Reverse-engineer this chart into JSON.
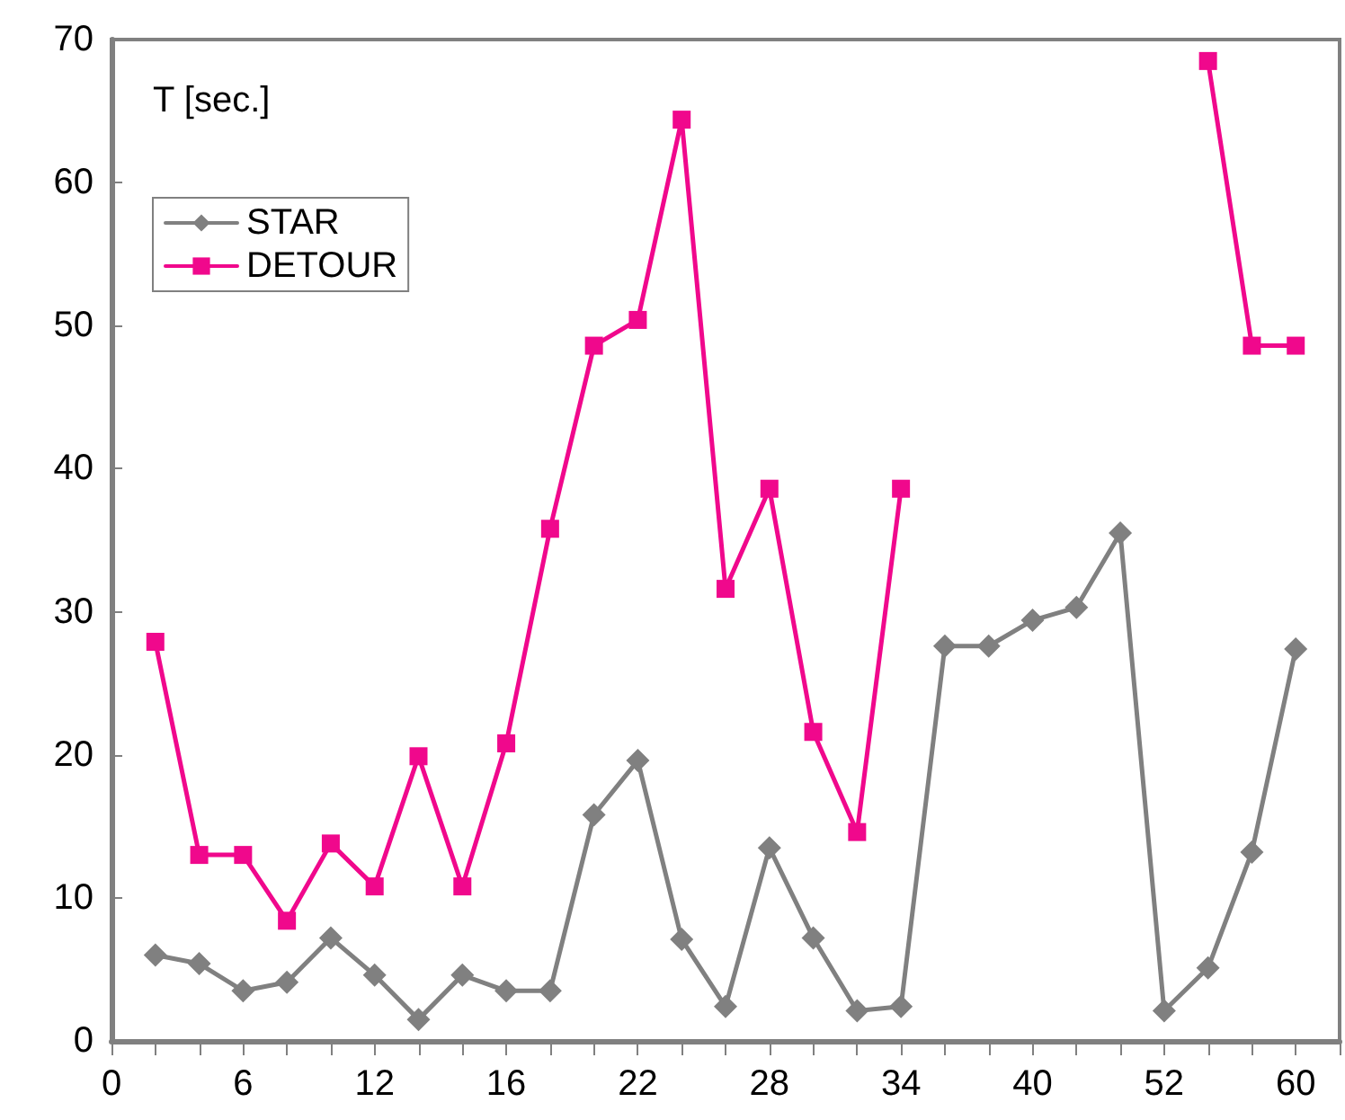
{
  "chart_data": {
    "type": "line",
    "ylabel": "T [sec.]",
    "categories": [
      "0",
      null,
      null,
      "6",
      null,
      null,
      "12",
      null,
      null,
      "16",
      null,
      null,
      "22",
      null,
      null,
      "28",
      null,
      null,
      "34",
      null,
      null,
      "40",
      null,
      null,
      "52",
      null,
      null,
      "60",
      null
    ],
    "series": [
      {
        "name": "STAR",
        "color": "#808080",
        "marker": "diamond",
        "values": [
          null,
          6,
          5.4,
          3.5,
          4.1,
          7.2,
          4.6,
          1.5,
          4.6,
          3.5,
          3.5,
          15.8,
          19.6,
          7.1,
          2.4,
          13.5,
          7.2,
          2.1,
          2.4,
          27.6,
          27.6,
          29.4,
          30.3,
          35.5,
          2.1,
          5.1,
          13.2,
          27.4,
          null
        ]
      },
      {
        "name": "DETOUR",
        "color": "#f0088c",
        "marker": "square",
        "values": [
          null,
          27.9,
          13,
          13,
          8.4,
          13.8,
          10.8,
          19.9,
          10.8,
          20.8,
          35.8,
          48.6,
          50.4,
          64.4,
          31.6,
          38.6,
          21.6,
          14.6,
          38.6,
          null,
          null,
          null,
          null,
          null,
          null,
          68.5,
          48.6,
          48.6,
          null
        ]
      }
    ],
    "ylim": [
      0,
      70
    ],
    "yticks": [
      0,
      10,
      20,
      30,
      40,
      50,
      60,
      70
    ],
    "grid": false,
    "legend": "top left"
  }
}
